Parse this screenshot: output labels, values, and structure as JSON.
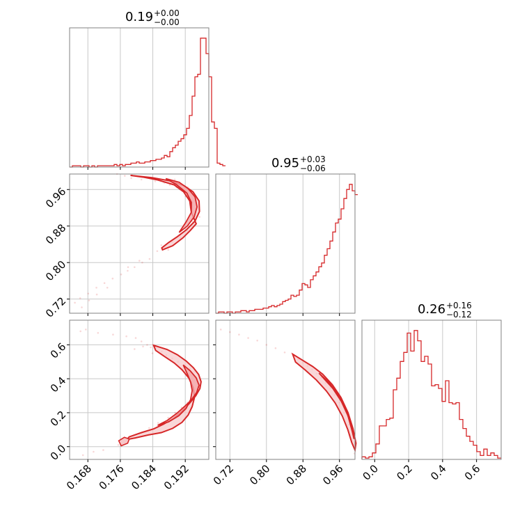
{
  "chart_data": {
    "type": "corner",
    "hist_color": "#d62728",
    "fill_color": "#f7c6c8",
    "panels": [
      {
        "id": "h0",
        "type": "histogram",
        "title": {
          "value": "0.19",
          "plus": "+0.00",
          "minus": "−0.00"
        },
        "xlim": [
          0.1635,
          0.1978
        ],
        "bin_start": 0.1635,
        "bin_width": 0.000686,
        "counts": [
          0,
          1,
          1,
          1,
          0,
          1,
          1,
          0,
          1,
          0,
          1,
          1,
          1,
          1,
          1,
          1,
          2,
          1,
          2,
          1,
          2,
          2,
          3,
          3,
          4,
          3,
          3,
          4,
          4,
          5,
          5,
          6,
          6,
          7,
          9,
          8,
          12,
          15,
          17,
          20,
          22,
          25,
          30,
          40,
          55,
          70,
          72,
          100,
          100,
          88,
          70,
          35,
          30,
          3,
          2,
          1
        ]
      },
      {
        "id": "s10",
        "type": "contour",
        "xlim": [
          0.1635,
          0.1978
        ],
        "ylim": [
          0.689,
          0.994
        ],
        "yticks": [
          "0.72",
          "0.80",
          "0.88",
          "0.96"
        ],
        "scatter": [
          [
            0.1752,
            0.994
          ],
          [
            0.1771,
            0.99
          ],
          [
            0.1787,
            0.985
          ],
          [
            0.1812,
            0.982
          ],
          [
            0.1846,
            0.978
          ],
          [
            0.1868,
            0.975
          ],
          [
            0.1882,
            0.97
          ],
          [
            0.1899,
            0.965
          ],
          [
            0.1907,
            0.96
          ],
          [
            0.1921,
            0.945
          ],
          [
            0.1933,
            0.93
          ],
          [
            0.1945,
            0.91
          ],
          [
            0.1937,
            0.89
          ],
          [
            0.1925,
            0.87
          ],
          [
            0.1908,
            0.855
          ],
          [
            0.1888,
            0.845
          ],
          [
            0.1866,
            0.835
          ],
          [
            0.1851,
            0.825
          ],
          [
            0.1832,
            0.808
          ],
          [
            0.1814,
            0.8
          ],
          [
            0.1795,
            0.79
          ],
          [
            0.1778,
            0.782
          ],
          [
            0.1762,
            0.774
          ],
          [
            0.1741,
            0.765
          ],
          [
            0.1721,
            0.755
          ],
          [
            0.1701,
            0.745
          ],
          [
            0.1681,
            0.732
          ],
          [
            0.1661,
            0.722
          ],
          [
            0.1648,
            0.712
          ],
          [
            0.1665,
            0.702
          ],
          [
            0.1683,
            0.717
          ],
          [
            0.1702,
            0.73
          ],
          [
            0.1728,
            0.745
          ],
          [
            0.1779,
            0.79
          ],
          [
            0.1807,
            0.804
          ],
          [
            0.1861,
            0.838
          ],
          [
            0.1878,
            0.828
          ],
          [
            0.1933,
            0.92
          ],
          [
            0.1955,
            0.9
          ],
          [
            0.1926,
            0.965
          ],
          [
            0.1894,
            0.982
          ]
        ],
        "level_outer": [
          [
            0.1785,
            0.991
          ],
          [
            0.1838,
            0.986
          ],
          [
            0.1882,
            0.979
          ],
          [
            0.1916,
            0.969
          ],
          [
            0.1939,
            0.955
          ],
          [
            0.1954,
            0.935
          ],
          [
            0.1955,
            0.912
          ],
          [
            0.1944,
            0.891
          ],
          [
            0.1923,
            0.872
          ],
          [
            0.1901,
            0.857
          ],
          [
            0.1879,
            0.844
          ],
          [
            0.1862,
            0.832
          ],
          [
            0.1864,
            0.828
          ],
          [
            0.1889,
            0.837
          ],
          [
            0.1914,
            0.854
          ],
          [
            0.1932,
            0.87
          ],
          [
            0.1947,
            0.885
          ],
          [
            0.1935,
            0.91
          ],
          [
            0.1931,
            0.935
          ],
          [
            0.1916,
            0.955
          ],
          [
            0.1893,
            0.97
          ],
          [
            0.1852,
            0.981
          ],
          [
            0.1818,
            0.987
          ]
        ],
        "level_inner": [
          [
            0.1872,
            0.984
          ],
          [
            0.1905,
            0.976
          ],
          [
            0.1927,
            0.962
          ],
          [
            0.1944,
            0.944
          ],
          [
            0.1949,
            0.922
          ],
          [
            0.1942,
            0.9
          ],
          [
            0.1925,
            0.88
          ],
          [
            0.1905,
            0.866
          ],
          [
            0.1922,
            0.889
          ],
          [
            0.1935,
            0.91
          ],
          [
            0.1935,
            0.932
          ],
          [
            0.1924,
            0.952
          ],
          [
            0.1898,
            0.971
          ]
        ]
      },
      {
        "id": "h1",
        "type": "histogram",
        "title": {
          "value": "0.95",
          "plus": "+0.03",
          "minus": "−0.06"
        },
        "xlim": [
          0.689,
          0.994
        ],
        "bin_start": 0.689,
        "bin_width": 0.0061,
        "counts": [
          0,
          1,
          1,
          0,
          1,
          1,
          0,
          1,
          1,
          2,
          2,
          1,
          2,
          2,
          3,
          3,
          3,
          4,
          4,
          5,
          6,
          5,
          6,
          7,
          9,
          10,
          11,
          14,
          13,
          14,
          18,
          23,
          22,
          20,
          26,
          29,
          32,
          36,
          39,
          45,
          50,
          56,
          63,
          70,
          73,
          81,
          89,
          96,
          100,
          95,
          92
        ]
      },
      {
        "id": "s20",
        "type": "contour",
        "xlim": [
          0.1635,
          0.1978
        ],
        "ylim": [
          -0.075,
          0.745
        ],
        "yticks": [
          "0.0",
          "0.2",
          "0.4",
          "0.6"
        ],
        "scatter": [
          [
            0.1675,
            0.69
          ],
          [
            0.1662,
            0.68
          ],
          [
            0.1705,
            0.67
          ],
          [
            0.1742,
            0.66
          ],
          [
            0.1775,
            0.65
          ],
          [
            0.1798,
            0.64
          ],
          [
            0.1812,
            0.62
          ],
          [
            0.1826,
            0.6
          ],
          [
            0.1847,
            0.58
          ],
          [
            0.1862,
            0.56
          ],
          [
            0.1873,
            0.54
          ],
          [
            0.1888,
            0.52
          ],
          [
            0.1902,
            0.5
          ],
          [
            0.1916,
            0.48
          ],
          [
            0.1931,
            0.46
          ],
          [
            0.1942,
            0.44
          ],
          [
            0.1951,
            0.42
          ],
          [
            0.1957,
            0.39
          ],
          [
            0.1954,
            0.35
          ],
          [
            0.1949,
            0.32
          ],
          [
            0.1938,
            0.29
          ],
          [
            0.1925,
            0.26
          ],
          [
            0.1911,
            0.23
          ],
          [
            0.1895,
            0.2
          ],
          [
            0.1878,
            0.17
          ],
          [
            0.1853,
            0.14
          ],
          [
            0.1831,
            0.11
          ],
          [
            0.1812,
            0.08
          ],
          [
            0.1796,
            0.05
          ],
          [
            0.1778,
            0.03
          ],
          [
            0.1755,
            0.01
          ],
          [
            0.1718,
            -0.02
          ],
          [
            0.1694,
            -0.03
          ],
          [
            0.1668,
            -0.05
          ],
          [
            0.1816,
            0.59
          ],
          [
            0.1835,
            0.585
          ],
          [
            0.1795,
            0.575
          ],
          [
            0.1839,
            0.55
          ]
        ],
        "level_outer": [
          [
            0.1842,
            0.597
          ],
          [
            0.1875,
            0.573
          ],
          [
            0.1901,
            0.541
          ],
          [
            0.1922,
            0.505
          ],
          [
            0.194,
            0.465
          ],
          [
            0.1953,
            0.425
          ],
          [
            0.1959,
            0.382
          ],
          [
            0.1956,
            0.342
          ],
          [
            0.1946,
            0.3
          ],
          [
            0.1931,
            0.257
          ],
          [
            0.1913,
            0.212
          ],
          [
            0.1891,
            0.166
          ],
          [
            0.1866,
            0.132
          ],
          [
            0.1843,
            0.106
          ],
          [
            0.1812,
            0.083
          ],
          [
            0.1782,
            0.058
          ],
          [
            0.1776,
            0.042
          ],
          [
            0.1798,
            0.052
          ],
          [
            0.1829,
            0.069
          ],
          [
            0.1861,
            0.083
          ],
          [
            0.1889,
            0.108
          ],
          [
            0.1912,
            0.143
          ],
          [
            0.1927,
            0.186
          ],
          [
            0.1937,
            0.236
          ],
          [
            0.1943,
            0.293
          ],
          [
            0.1939,
            0.349
          ],
          [
            0.1929,
            0.404
          ],
          [
            0.1912,
            0.453
          ],
          [
            0.1893,
            0.493
          ],
          [
            0.1869,
            0.531
          ],
          [
            0.1847,
            0.567
          ]
        ],
        "level_inner": [
          [
            0.1915,
            0.481
          ],
          [
            0.1932,
            0.447
          ],
          [
            0.1947,
            0.405
          ],
          [
            0.1954,
            0.362
          ],
          [
            0.1948,
            0.319
          ],
          [
            0.1935,
            0.275
          ],
          [
            0.1918,
            0.236
          ],
          [
            0.1899,
            0.196
          ],
          [
            0.1876,
            0.155
          ],
          [
            0.1852,
            0.126
          ],
          [
            0.1879,
            0.146
          ],
          [
            0.1904,
            0.182
          ],
          [
            0.1922,
            0.225
          ],
          [
            0.1933,
            0.277
          ],
          [
            0.1937,
            0.331
          ],
          [
            0.1933,
            0.381
          ],
          [
            0.1925,
            0.429
          ]
        ],
        "level_blob": [
          [
            0.1762,
            0.005
          ],
          [
            0.1778,
            0.02
          ],
          [
            0.1782,
            0.045
          ],
          [
            0.177,
            0.055
          ],
          [
            0.1756,
            0.035
          ]
        ]
      },
      {
        "id": "s21",
        "type": "contour",
        "xlim": [
          0.689,
          0.994
        ],
        "ylim": [
          -0.075,
          0.745
        ],
        "scatter": [
          [
            0.7,
            0.69
          ],
          [
            0.72,
            0.675
          ],
          [
            0.74,
            0.66
          ],
          [
            0.76,
            0.64
          ],
          [
            0.78,
            0.625
          ],
          [
            0.8,
            0.6
          ],
          [
            0.82,
            0.58
          ],
          [
            0.84,
            0.555
          ],
          [
            0.86,
            0.53
          ],
          [
            0.87,
            0.515
          ],
          [
            0.88,
            0.495
          ],
          [
            0.89,
            0.475
          ],
          [
            0.9,
            0.455
          ],
          [
            0.91,
            0.43
          ],
          [
            0.92,
            0.405
          ],
          [
            0.93,
            0.375
          ],
          [
            0.94,
            0.345
          ],
          [
            0.95,
            0.305
          ],
          [
            0.96,
            0.26
          ],
          [
            0.97,
            0.2
          ],
          [
            0.98,
            0.13
          ],
          [
            0.985,
            0.07
          ],
          [
            0.99,
            0.01
          ],
          [
            0.993,
            -0.04
          ]
        ],
        "level_outer": [
          [
            0.8575,
            0.545
          ],
          [
            0.8785,
            0.51
          ],
          [
            0.9015,
            0.472
          ],
          [
            0.9232,
            0.427
          ],
          [
            0.9445,
            0.365
          ],
          [
            0.9632,
            0.29
          ],
          [
            0.9788,
            0.2
          ],
          [
            0.9897,
            0.105
          ],
          [
            0.9961,
            0.02
          ],
          [
            0.994,
            -0.02
          ],
          [
            0.9869,
            0.025
          ],
          [
            0.9783,
            0.1
          ],
          [
            0.9662,
            0.18
          ],
          [
            0.9504,
            0.258
          ],
          [
            0.9313,
            0.328
          ],
          [
            0.9093,
            0.393
          ],
          [
            0.8852,
            0.451
          ],
          [
            0.8638,
            0.498
          ]
        ],
        "level_inner": [
          [
            0.9152,
            0.433
          ],
          [
            0.9362,
            0.38
          ],
          [
            0.9552,
            0.315
          ],
          [
            0.9716,
            0.233
          ],
          [
            0.9839,
            0.14
          ],
          [
            0.9918,
            0.045
          ],
          [
            0.9875,
            0.095
          ],
          [
            0.9784,
            0.183
          ],
          [
            0.9641,
            0.266
          ],
          [
            0.9453,
            0.343
          ],
          [
            0.9245,
            0.405
          ]
        ]
      },
      {
        "id": "h2",
        "type": "histogram",
        "title": {
          "value": "0.26",
          "plus": "+0.16",
          "minus": "−0.12"
        },
        "xlim": [
          -0.075,
          0.745
        ],
        "bin_start": -0.075,
        "bin_width": 0.0205,
        "counts": [
          2,
          1,
          2,
          5,
          12,
          26,
          26,
          31,
          32,
          54,
          63,
          76,
          83,
          98,
          84,
          100,
          92,
          76,
          80,
          74,
          57,
          58,
          55,
          45,
          61,
          44,
          43,
          44,
          31,
          24,
          18,
          14,
          11,
          6,
          3,
          8,
          3,
          5,
          3,
          1
        ]
      }
    ],
    "bottom_ticks": [
      [
        "0.168",
        "0.176",
        "0.184",
        "0.192"
      ],
      [
        "0.72",
        "0.80",
        "0.88",
        "0.96"
      ],
      [
        "0.0",
        "0.2",
        "0.4",
        "0.6"
      ]
    ],
    "tick_values": {
      "p0": [
        0.168,
        0.176,
        0.184,
        0.192
      ],
      "p1": [
        0.72,
        0.8,
        0.88,
        0.96
      ],
      "p2": [
        0.0,
        0.2,
        0.4,
        0.6
      ]
    }
  }
}
